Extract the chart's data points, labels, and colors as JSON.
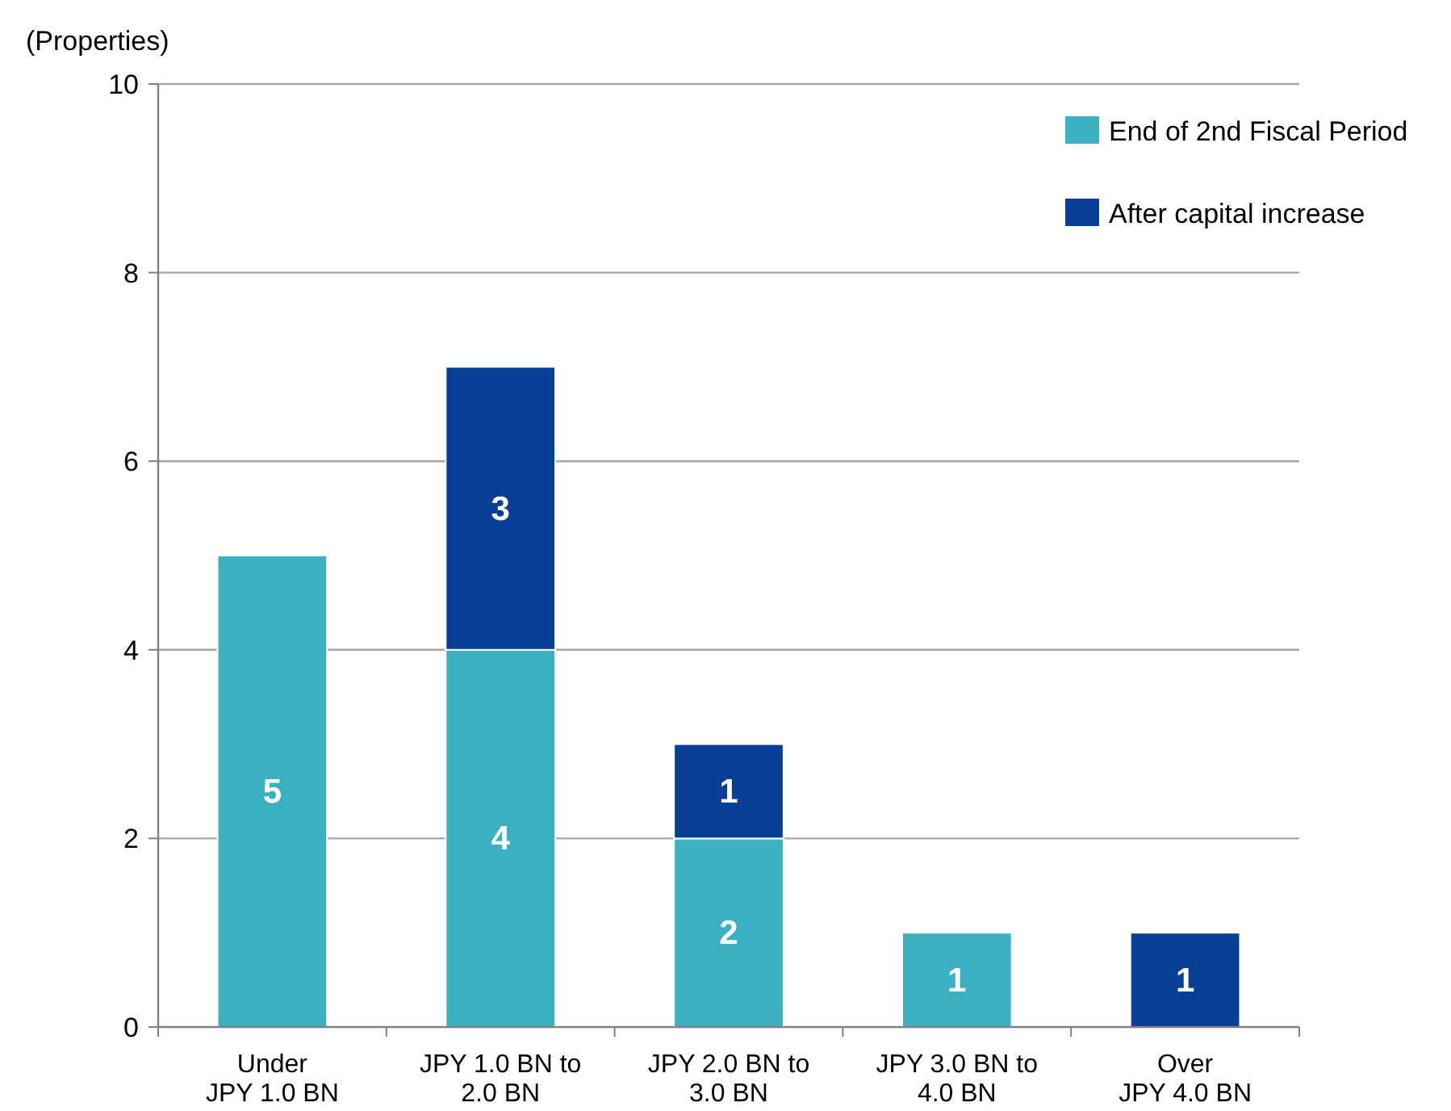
{
  "chart_data": {
    "type": "bar",
    "stacked": true,
    "ylabel": "(Properties)",
    "categories": [
      "Under\nJPY 1.0 BN",
      "JPY 1.0 BN to\n2.0 BN",
      "JPY 2.0 BN to\n3.0 BN",
      "JPY 3.0 BN to\n4.0 BN",
      "Over\nJPY 4.0 BN"
    ],
    "series": [
      {
        "name": "End of 2nd Fiscal Period",
        "color": "#3cb0c3",
        "values": [
          5,
          4,
          2,
          1,
          null
        ]
      },
      {
        "name": "After capital increase",
        "color": "#0a3f96",
        "values": [
          null,
          3,
          1,
          null,
          1
        ]
      }
    ],
    "ylim": [
      0,
      10
    ],
    "yticks": [
      0,
      2,
      4,
      6,
      8,
      10
    ],
    "grid": "y",
    "legend": "top right",
    "data_labels": true
  }
}
